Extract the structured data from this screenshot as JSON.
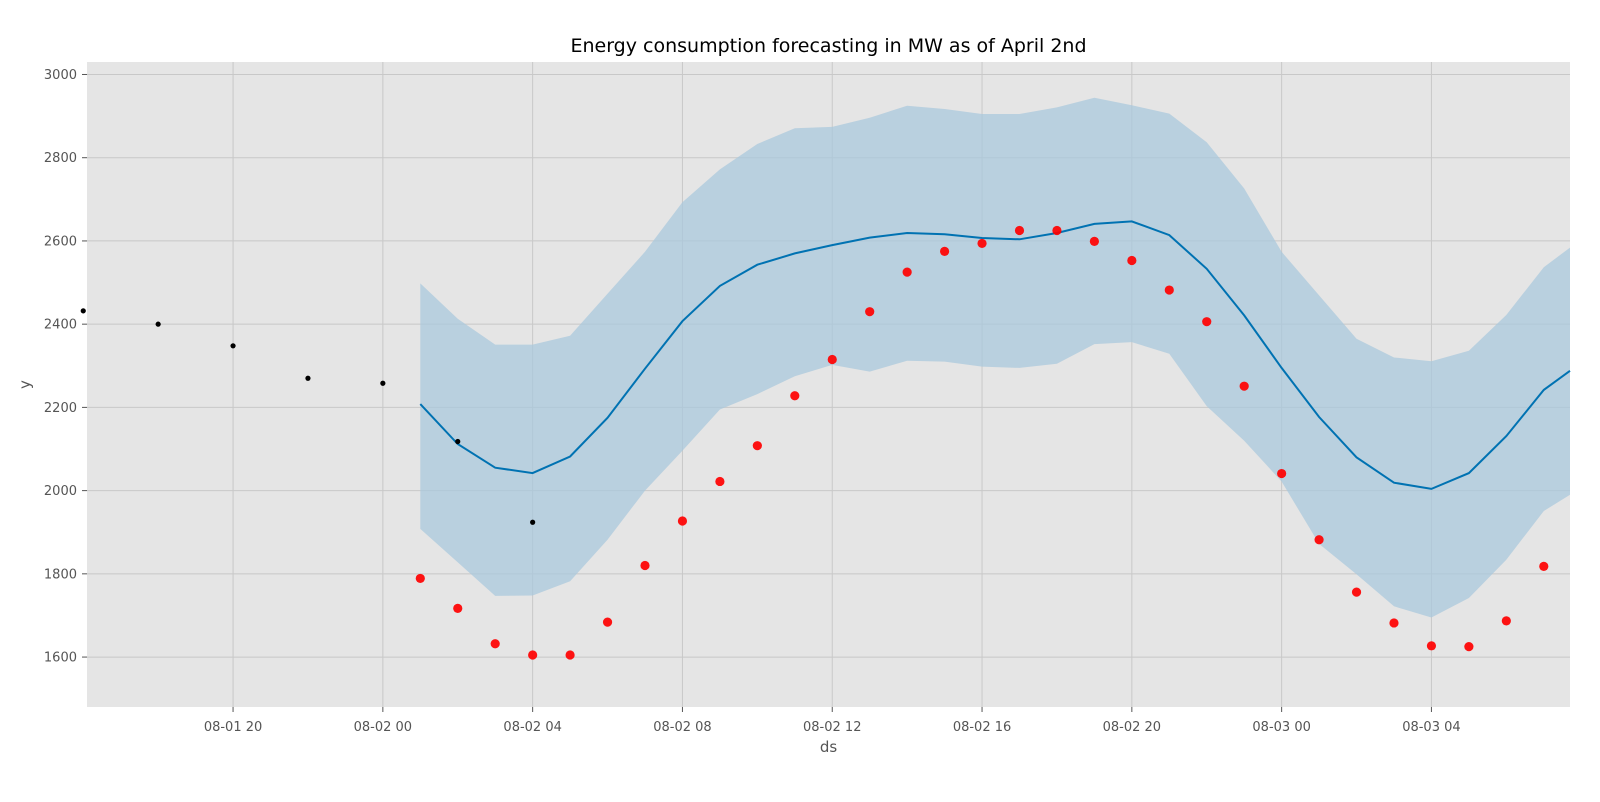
{
  "chart_data": {
    "type": "line",
    "title": "Energy consumption forecasting in MW as of April 2nd",
    "xlabel": "ds",
    "ylabel": "y",
    "ylim": [
      1480,
      3030
    ],
    "xlim": [
      "08-01 16:06",
      "08-03 07:42"
    ],
    "grid": true,
    "x_ticks": [
      "08-01 20",
      "08-02 00",
      "08-02 04",
      "08-02 08",
      "08-02 12",
      "08-02 16",
      "08-02 20",
      "08-03 00",
      "08-03 04"
    ],
    "x_tick_values": [
      "08-01 20:00",
      "08-02 00:00",
      "08-02 04:00",
      "08-02 08:00",
      "08-02 12:00",
      "08-02 16:00",
      "08-02 20:00",
      "08-03 00:00",
      "08-03 04:00"
    ],
    "y_ticks": [
      1600,
      1800,
      2000,
      2200,
      2400,
      2600,
      2800,
      3000
    ],
    "colors": {
      "background": "#E5E5E5",
      "grid": "#C8C8C8",
      "forecast_line": "#0072B2",
      "uncertainty_band": "#A9C8DC",
      "history_points": "#000000",
      "actual_points": "#FF0000"
    },
    "series": [
      {
        "kind": "history_points",
        "points": [
          {
            "x": "08-01 16:00",
            "y": 2432
          },
          {
            "x": "08-01 18:00",
            "y": 2400
          },
          {
            "x": "08-01 20:00",
            "y": 2348
          },
          {
            "x": "08-01 22:00",
            "y": 2270
          },
          {
            "x": "08-02 00:00",
            "y": 2258
          },
          {
            "x": "08-02 02:00",
            "y": 2118
          },
          {
            "x": "08-02 04:00",
            "y": 1924
          }
        ]
      },
      {
        "kind": "forecast_line",
        "x": [
          "08-02 01:00",
          "08-02 02:00",
          "08-02 03:00",
          "08-02 04:00",
          "08-02 05:00",
          "08-02 06:00",
          "08-02 07:00",
          "08-02 08:00",
          "08-02 09:00",
          "08-02 10:00",
          "08-02 11:00",
          "08-02 12:00",
          "08-02 13:00",
          "08-02 14:00",
          "08-02 15:00",
          "08-02 16:00",
          "08-02 17:00",
          "08-02 18:00",
          "08-02 19:00",
          "08-02 20:00",
          "08-02 21:00",
          "08-02 22:00",
          "08-02 23:00",
          "08-03 00:00",
          "08-03 01:00",
          "08-03 02:00",
          "08-03 03:00",
          "08-03 04:00",
          "08-03 05:00",
          "08-03 06:00",
          "08-03 07:00",
          "08-03 07:42"
        ],
        "yhat": [
          2208,
          2112,
          2055,
          2042,
          2082,
          2175,
          2293,
          2407,
          2492,
          2543,
          2570,
          2590,
          2608,
          2619,
          2616,
          2607,
          2604,
          2619,
          2641,
          2647,
          2614,
          2533,
          2421,
          2295,
          2177,
          2080,
          2019,
          2004,
          2042,
          2131,
          2242,
          2288
        ],
        "yhat_lower": [
          1908,
          1828,
          1747,
          1748,
          1782,
          1882,
          2000,
          2096,
          2195,
          2232,
          2275,
          2302,
          2286,
          2312,
          2310,
          2298,
          2295,
          2305,
          2352,
          2357,
          2329,
          2203,
          2120,
          2022,
          1872,
          1799,
          1722,
          1695,
          1742,
          1834,
          1951,
          1990
        ],
        "yhat_upper": [
          2498,
          2413,
          2351,
          2351,
          2372,
          2473,
          2574,
          2693,
          2772,
          2833,
          2871,
          2874,
          2896,
          2925,
          2917,
          2905,
          2905,
          2921,
          2944,
          2926,
          2906,
          2837,
          2726,
          2574,
          2469,
          2365,
          2320,
          2311,
          2336,
          2422,
          2537,
          2584
        ]
      },
      {
        "kind": "actual_points",
        "points": [
          {
            "x": "08-02 01:00",
            "y": 1789
          },
          {
            "x": "08-02 02:00",
            "y": 1717
          },
          {
            "x": "08-02 03:00",
            "y": 1632
          },
          {
            "x": "08-02 04:00",
            "y": 1605
          },
          {
            "x": "08-02 05:00",
            "y": 1605
          },
          {
            "x": "08-02 06:00",
            "y": 1684
          },
          {
            "x": "08-02 07:00",
            "y": 1820
          },
          {
            "x": "08-02 08:00",
            "y": 1927
          },
          {
            "x": "08-02 09:00",
            "y": 2022
          },
          {
            "x": "08-02 10:00",
            "y": 2108
          },
          {
            "x": "08-02 11:00",
            "y": 2228
          },
          {
            "x": "08-02 12:00",
            "y": 2315
          },
          {
            "x": "08-02 13:00",
            "y": 2430
          },
          {
            "x": "08-02 14:00",
            "y": 2525
          },
          {
            "x": "08-02 15:00",
            "y": 2575
          },
          {
            "x": "08-02 16:00",
            "y": 2594
          },
          {
            "x": "08-02 17:00",
            "y": 2625
          },
          {
            "x": "08-02 18:00",
            "y": 2625
          },
          {
            "x": "08-02 19:00",
            "y": 2599
          },
          {
            "x": "08-02 20:00",
            "y": 2553
          },
          {
            "x": "08-02 21:00",
            "y": 2482
          },
          {
            "x": "08-02 22:00",
            "y": 2406
          },
          {
            "x": "08-02 23:00",
            "y": 2251
          },
          {
            "x": "08-03 00:00",
            "y": 2041
          },
          {
            "x": "08-03 01:00",
            "y": 1882
          },
          {
            "x": "08-03 02:00",
            "y": 1756
          },
          {
            "x": "08-03 03:00",
            "y": 1682
          },
          {
            "x": "08-03 04:00",
            "y": 1627
          },
          {
            "x": "08-03 05:00",
            "y": 1625
          },
          {
            "x": "08-03 06:00",
            "y": 1687
          },
          {
            "x": "08-03 07:00",
            "y": 1818
          }
        ]
      }
    ]
  }
}
